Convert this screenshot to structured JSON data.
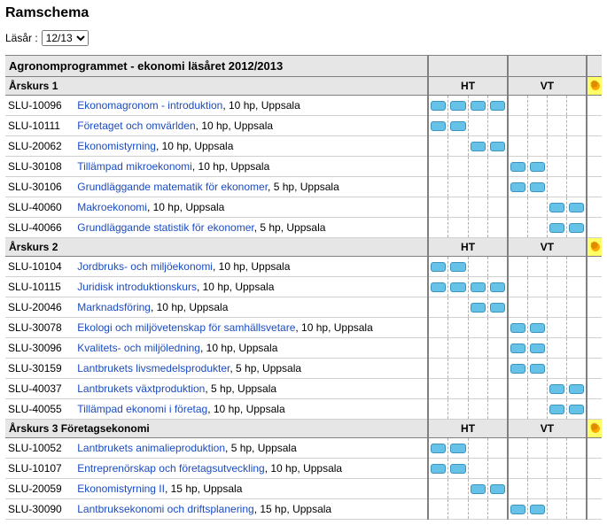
{
  "page_title": "Ramschema",
  "year_label": "Läsår :",
  "year_selected": "12/13",
  "year_options": [
    "12/13"
  ],
  "program_header": "Agronomprogrammet - ekonomi läsåret 2012/2013",
  "term_labels": {
    "ht": "HT",
    "vt": "VT"
  },
  "colors": {
    "link": "#1a4bc4",
    "bar_fill": "#67c2e8",
    "bar_border": "#3a94bd",
    "header_bg": "#e6e6e6",
    "star_bg": "#ffff66"
  },
  "years": [
    {
      "label": "Årskurs 1",
      "courses": [
        {
          "code": "SLU-10096",
          "title": "Ekonomagronom - introduktion",
          "suffix": ", 10 hp, Uppsala",
          "periods": [
            1,
            1,
            1,
            1,
            0,
            0,
            0,
            0
          ]
        },
        {
          "code": "SLU-10111",
          "title": "Företaget och omvärlden",
          "suffix": ", 10 hp, Uppsala",
          "periods": [
            1,
            1,
            0,
            0,
            0,
            0,
            0,
            0
          ]
        },
        {
          "code": "SLU-20062",
          "title": "Ekonomistyrning",
          "suffix": ", 10 hp, Uppsala",
          "periods": [
            0,
            0,
            1,
            1,
            0,
            0,
            0,
            0
          ]
        },
        {
          "code": "SLU-30108",
          "title": "Tillämpad mikroekonomi",
          "suffix": ", 10 hp, Uppsala",
          "periods": [
            0,
            0,
            0,
            0,
            1,
            1,
            0,
            0
          ]
        },
        {
          "code": "SLU-30106",
          "title": "Grundläggande matematik för ekonomer",
          "suffix": ", 5 hp, Uppsala",
          "periods": [
            0,
            0,
            0,
            0,
            1,
            1,
            0,
            0
          ]
        },
        {
          "code": "SLU-40060",
          "title": "Makroekonomi",
          "suffix": ", 10 hp, Uppsala",
          "periods": [
            0,
            0,
            0,
            0,
            0,
            0,
            1,
            1
          ]
        },
        {
          "code": "SLU-40066",
          "title": "Grundläggande statistik för ekonomer",
          "suffix": ", 5 hp, Uppsala",
          "periods": [
            0,
            0,
            0,
            0,
            0,
            0,
            1,
            1
          ]
        }
      ]
    },
    {
      "label": "Årskurs 2",
      "courses": [
        {
          "code": "SLU-10104",
          "title": "Jordbruks- och miljöekonomi",
          "suffix": ", 10 hp, Uppsala",
          "periods": [
            1,
            1,
            0,
            0,
            0,
            0,
            0,
            0
          ]
        },
        {
          "code": "SLU-10115",
          "title": "Juridisk introduktionskurs",
          "suffix": ", 10 hp, Uppsala",
          "periods": [
            1,
            1,
            1,
            1,
            0,
            0,
            0,
            0
          ]
        },
        {
          "code": "SLU-20046",
          "title": "Marknadsföring",
          "suffix": ", 10 hp, Uppsala",
          "periods": [
            0,
            0,
            1,
            1,
            0,
            0,
            0,
            0
          ]
        },
        {
          "code": "SLU-30078",
          "title": "Ekologi och miljövetenskap för samhällsvetare",
          "suffix": ", 10 hp, Uppsala",
          "periods": [
            0,
            0,
            0,
            0,
            1,
            1,
            0,
            0
          ]
        },
        {
          "code": "SLU-30096",
          "title": "Kvalitets- och miljöledning",
          "suffix": ", 10 hp, Uppsala",
          "periods": [
            0,
            0,
            0,
            0,
            1,
            1,
            0,
            0
          ]
        },
        {
          "code": "SLU-30159",
          "title": "Lantbrukets livsmedelsprodukter",
          "suffix": ", 5 hp, Uppsala",
          "periods": [
            0,
            0,
            0,
            0,
            1,
            1,
            0,
            0
          ]
        },
        {
          "code": "SLU-40037",
          "title": "Lantbrukets växtproduktion",
          "suffix": ", 5 hp, Uppsala",
          "periods": [
            0,
            0,
            0,
            0,
            0,
            0,
            1,
            1
          ]
        },
        {
          "code": "SLU-40055",
          "title": "Tillämpad ekonomi i företag",
          "suffix": ", 10 hp, Uppsala",
          "periods": [
            0,
            0,
            0,
            0,
            0,
            0,
            1,
            1
          ]
        }
      ]
    },
    {
      "label": "Årskurs 3 Företagsekonomi",
      "courses": [
        {
          "code": "SLU-10052",
          "title": "Lantbrukets animalieproduktion",
          "suffix": ", 5 hp, Uppsala",
          "periods": [
            1,
            1,
            0,
            0,
            0,
            0,
            0,
            0
          ]
        },
        {
          "code": "SLU-10107",
          "title": "Entreprenörskap och företagsutveckling",
          "suffix": ", 10 hp, Uppsala",
          "periods": [
            1,
            1,
            0,
            0,
            0,
            0,
            0,
            0
          ]
        },
        {
          "code": "SLU-20059",
          "title": "Ekonomistyrning II",
          "suffix": ", 15 hp, Uppsala",
          "periods": [
            0,
            0,
            1,
            1,
            0,
            0,
            0,
            0
          ]
        },
        {
          "code": "SLU-30090",
          "title": "Lantbruksekonomi och driftsplanering",
          "suffix": ", 15 hp, Uppsala",
          "periods": [
            0,
            0,
            0,
            0,
            1,
            1,
            0,
            0
          ]
        }
      ]
    }
  ]
}
